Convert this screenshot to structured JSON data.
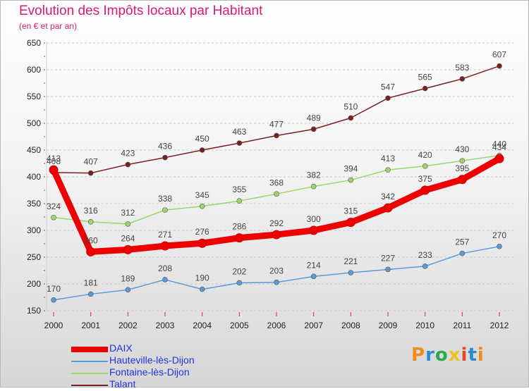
{
  "title": "Evolution des Impôts locaux par Habitant",
  "subtitle": "(en € et par an)",
  "logo": {
    "text": "Proxiti",
    "colors": [
      "#f08c1a",
      "#2a8ad4",
      "#2aa84a",
      "#f0c020",
      "#e8452a",
      "#2a8ad4",
      "#f08c1a"
    ]
  },
  "chart_data": {
    "type": "line",
    "title": "Evolution des Impôts locaux par Habitant",
    "subtitle": "(en € et par an)",
    "xlabel": "",
    "ylabel": "",
    "x": [
      "2000",
      "2001",
      "2002",
      "2003",
      "2004",
      "2005",
      "2006",
      "2007",
      "2008",
      "2009",
      "2010",
      "2011",
      "2012"
    ],
    "ylim": [
      150,
      650
    ],
    "yticks": [
      "150",
      "200",
      "250",
      "300",
      "350",
      "400",
      "450",
      "500",
      "550",
      "600",
      "650"
    ],
    "grid": "horizontal-dashed",
    "legend_position": "bottom-left",
    "series": [
      {
        "name": "Talant",
        "color": "#7a1f1f",
        "values": [
          408,
          407,
          423,
          436,
          450,
          463,
          477,
          489,
          510,
          547,
          565,
          583,
          607
        ]
      },
      {
        "name": "Fontaine-lès-Dijon",
        "color": "#9ad66a",
        "values": [
          324,
          316,
          312,
          338,
          345,
          355,
          368,
          382,
          394,
          413,
          420,
          430,
          440
        ]
      },
      {
        "name": "Hauteville-lès-Dijon",
        "color": "#5b9bd5",
        "values": [
          170,
          181,
          189,
          208,
          190,
          202,
          203,
          214,
          221,
          227,
          233,
          257,
          270
        ]
      },
      {
        "name": "DAIX",
        "color": "#ee0000",
        "values": [
          413,
          260,
          264,
          271,
          276,
          286,
          292,
          300,
          315,
          342,
          375,
          395,
          434
        ]
      }
    ],
    "legend": [
      "DAIX",
      "Hauteville-lès-Dijon",
      "Fontaine-lès-Dijon",
      "Talant"
    ]
  }
}
